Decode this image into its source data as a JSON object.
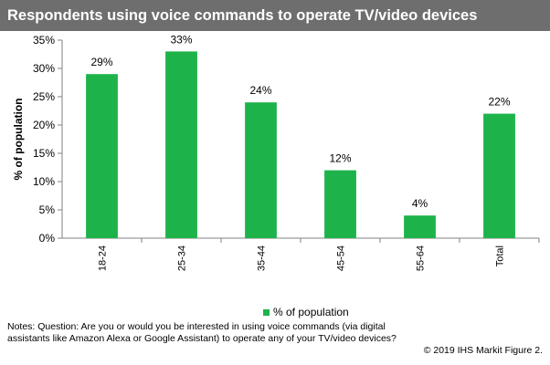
{
  "title": "Respondents using voice commands to operate TV/video devices",
  "notes": "Notes: Question: Are you or would you be interested in using voice commands (via digital assistants like Amazon Alexa or Google Assistant) to operate any of your TV/video devices?",
  "credit": "© 2019 IHS Markit   Figure 2.",
  "colors": {
    "bar": "#1db34a",
    "title_bg": "#6e6e6e"
  },
  "chart_data": {
    "type": "bar",
    "title": "Respondents using voice commands to operate TV/video devices",
    "categories": [
      "18-24",
      "25-34",
      "35-44",
      "45-54",
      "55-64",
      "Total"
    ],
    "series": [
      {
        "name": "% of population",
        "values": [
          29,
          33,
          24,
          12,
          4,
          22
        ]
      }
    ],
    "data_labels": [
      "29%",
      "33%",
      "24%",
      "12%",
      "4%",
      "22%"
    ],
    "ylabel": "% of population",
    "xlabel": "",
    "ylim": [
      0,
      35
    ],
    "yticks": [
      0,
      5,
      10,
      15,
      20,
      25,
      30,
      35
    ],
    "ytick_labels": [
      "0%",
      "5%",
      "10%",
      "15%",
      "20%",
      "25%",
      "30%",
      "35%"
    ],
    "grid": false,
    "legend": "bottom"
  }
}
